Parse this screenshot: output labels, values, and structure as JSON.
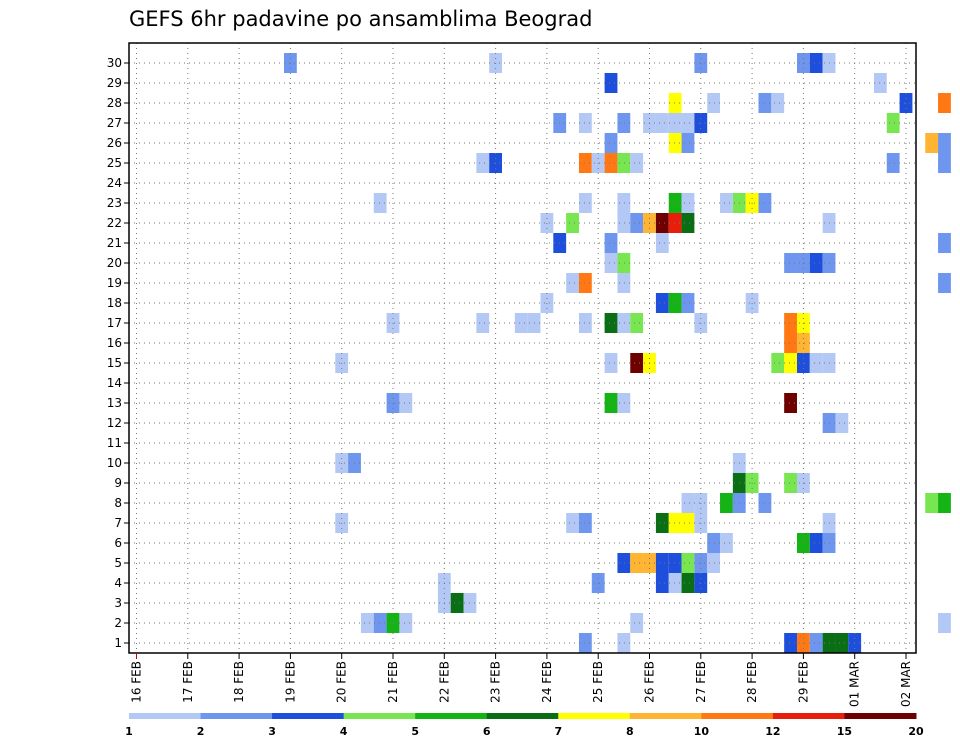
{
  "chart_data": {
    "type": "heatmap",
    "title": "GEFS 6hr padavine po ansamblima Beograd",
    "xlabel": "",
    "ylabel": "",
    "x_tick_labels": [
      "16 FEB",
      "17 FEB",
      "18 FEB",
      "19 FEB",
      "20 FEB",
      "21 FEB",
      "22 FEB",
      "23 FEB",
      "24 FEB",
      "25 FEB",
      "26 FEB",
      "27 FEB",
      "28 FEB",
      "29 FEB",
      "01 MAR",
      "02 MAR"
    ],
    "y_tick_labels": [
      "1",
      "2",
      "3",
      "4",
      "5",
      "6",
      "7",
      "8",
      "9",
      "10",
      "11",
      "12",
      "13",
      "14",
      "15",
      "16",
      "17",
      "18",
      "19",
      "20",
      "21",
      "22",
      "23",
      "24",
      "25",
      "26",
      "27",
      "28",
      "29",
      "30"
    ],
    "grid": true,
    "colorbar": {
      "labels": [
        "1",
        "2",
        "3",
        "4",
        "5",
        "6",
        "7",
        "8",
        "10",
        "12",
        "15",
        "20"
      ],
      "colors": [
        "#b4c8f5",
        "#6e96ee",
        "#1e4edc",
        "#78e650",
        "#14b414",
        "#0a6e14",
        "#ffff00",
        "#ffb432",
        "#ff7814",
        "#e61e0a",
        "#6e0000"
      ]
    },
    "cells": [
      {
        "time": "19 FEB 00Z",
        "member": 30,
        "cls": 2
      },
      {
        "time": "23 FEB 00Z",
        "member": 30,
        "cls": 1
      },
      {
        "time": "27 FEB 00Z",
        "member": 30,
        "cls": 2
      },
      {
        "time": "29 FEB 00Z",
        "member": 30,
        "cls": 2
      },
      {
        "time": "29 FEB 06Z",
        "member": 30,
        "cls": 3
      },
      {
        "time": "29 FEB 12Z",
        "member": 30,
        "cls": 1
      },
      {
        "time": "25 FEB 06Z",
        "member": 29,
        "cls": 3
      },
      {
        "time": "01 MAR 12Z",
        "member": 29,
        "cls": 1
      },
      {
        "time": "26 FEB 12Z",
        "member": 28,
        "cls": 7
      },
      {
        "time": "27 FEB 06Z",
        "member": 28,
        "cls": 1
      },
      {
        "time": "28 FEB 06Z",
        "member": 28,
        "cls": 2
      },
      {
        "time": "28 FEB 12Z",
        "member": 28,
        "cls": 1
      },
      {
        "time": "02 MAR 18Z",
        "member": 28,
        "cls": 9
      },
      {
        "time": "02 MAR 00Z",
        "member": 28,
        "cls": 3
      },
      {
        "time": "24 FEB 06Z",
        "member": 27,
        "cls": 2
      },
      {
        "time": "24 FEB 18Z",
        "member": 27,
        "cls": 1
      },
      {
        "time": "25 FEB 12Z",
        "member": 27,
        "cls": 2
      },
      {
        "time": "26 FEB 00Z",
        "member": 27,
        "cls": 1
      },
      {
        "time": "26 FEB 06Z",
        "member": 27,
        "cls": 1
      },
      {
        "time": "26 FEB 12Z",
        "member": 27,
        "cls": 1
      },
      {
        "time": "26 FEB 18Z",
        "member": 27,
        "cls": 1
      },
      {
        "time": "27 FEB 00Z",
        "member": 27,
        "cls": 3
      },
      {
        "time": "01 MAR 18Z",
        "member": 27,
        "cls": 4
      },
      {
        "time": "25 FEB 06Z",
        "member": 26,
        "cls": 2
      },
      {
        "time": "26 FEB 12Z",
        "member": 26,
        "cls": 7
      },
      {
        "time": "26 FEB 18Z",
        "member": 26,
        "cls": 2
      },
      {
        "time": "02 MAR 12Z",
        "member": 26,
        "cls": 8
      },
      {
        "time": "02 MAR 18Z",
        "member": 26,
        "cls": 2
      },
      {
        "time": "22 FEB 18Z",
        "member": 25,
        "cls": 1
      },
      {
        "time": "23 FEB 00Z",
        "member": 25,
        "cls": 3
      },
      {
        "time": "24 FEB 18Z",
        "member": 25,
        "cls": 9
      },
      {
        "time": "25 FEB 00Z",
        "member": 25,
        "cls": 1
      },
      {
        "time": "25 FEB 06Z",
        "member": 25,
        "cls": 9
      },
      {
        "time": "25 FEB 12Z",
        "member": 25,
        "cls": 4
      },
      {
        "time": "25 FEB 18Z",
        "member": 25,
        "cls": 1
      },
      {
        "time": "01 MAR 18Z",
        "member": 25,
        "cls": 2
      },
      {
        "time": "02 MAR 18Z",
        "member": 25,
        "cls": 2
      },
      {
        "time": "20 FEB 18Z",
        "member": 23,
        "cls": 1
      },
      {
        "time": "24 FEB 18Z",
        "member": 23,
        "cls": 1
      },
      {
        "time": "25 FEB 12Z",
        "member": 23,
        "cls": 1
      },
      {
        "time": "26 FEB 12Z",
        "member": 23,
        "cls": 5
      },
      {
        "time": "26 FEB 18Z",
        "member": 23,
        "cls": 1
      },
      {
        "time": "27 FEB 12Z",
        "member": 23,
        "cls": 1
      },
      {
        "time": "27 FEB 18Z",
        "member": 23,
        "cls": 4
      },
      {
        "time": "28 FEB 00Z",
        "member": 23,
        "cls": 7
      },
      {
        "time": "28 FEB 06Z",
        "member": 23,
        "cls": 2
      },
      {
        "time": "24 FEB 00Z",
        "member": 22,
        "cls": 1
      },
      {
        "time": "24 FEB 12Z",
        "member": 22,
        "cls": 4
      },
      {
        "time": "25 FEB 12Z",
        "member": 22,
        "cls": 1
      },
      {
        "time": "25 FEB 18Z",
        "member": 22,
        "cls": 2
      },
      {
        "time": "26 FEB 00Z",
        "member": 22,
        "cls": 8
      },
      {
        "time": "26 FEB 06Z",
        "member": 22,
        "cls": 11
      },
      {
        "time": "26 FEB 12Z",
        "member": 22,
        "cls": 10
      },
      {
        "time": "26 FEB 18Z",
        "member": 22,
        "cls": 6
      },
      {
        "time": "29 FEB 12Z",
        "member": 22,
        "cls": 1
      },
      {
        "time": "24 FEB 06Z",
        "member": 21,
        "cls": 3
      },
      {
        "time": "25 FEB 06Z",
        "member": 21,
        "cls": 2
      },
      {
        "time": "26 FEB 06Z",
        "member": 21,
        "cls": 1
      },
      {
        "time": "02 MAR 18Z",
        "member": 21,
        "cls": 2
      },
      {
        "time": "25 FEB 06Z",
        "member": 20,
        "cls": 1
      },
      {
        "time": "25 FEB 12Z",
        "member": 20,
        "cls": 4
      },
      {
        "time": "28 FEB 18Z",
        "member": 20,
        "cls": 2
      },
      {
        "time": "29 FEB 00Z",
        "member": 20,
        "cls": 2
      },
      {
        "time": "29 FEB 06Z",
        "member": 20,
        "cls": 3
      },
      {
        "time": "29 FEB 12Z",
        "member": 20,
        "cls": 2
      },
      {
        "time": "24 FEB 12Z",
        "member": 19,
        "cls": 1
      },
      {
        "time": "24 FEB 18Z",
        "member": 19,
        "cls": 9
      },
      {
        "time": "25 FEB 12Z",
        "member": 19,
        "cls": 1
      },
      {
        "time": "02 MAR 18Z",
        "member": 19,
        "cls": 2
      },
      {
        "time": "24 FEB 00Z",
        "member": 18,
        "cls": 1
      },
      {
        "time": "26 FEB 06Z",
        "member": 18,
        "cls": 3
      },
      {
        "time": "26 FEB 12Z",
        "member": 18,
        "cls": 5
      },
      {
        "time": "26 FEB 18Z",
        "member": 18,
        "cls": 2
      },
      {
        "time": "28 FEB 00Z",
        "member": 18,
        "cls": 1
      },
      {
        "time": "21 FEB 00Z",
        "member": 17,
        "cls": 1
      },
      {
        "time": "22 FEB 18Z",
        "member": 17,
        "cls": 1
      },
      {
        "time": "23 FEB 12Z",
        "member": 17,
        "cls": 1
      },
      {
        "time": "23 FEB 18Z",
        "member": 17,
        "cls": 1
      },
      {
        "time": "24 FEB 18Z",
        "member": 17,
        "cls": 1
      },
      {
        "time": "25 FEB 06Z",
        "member": 17,
        "cls": 6
      },
      {
        "time": "25 FEB 12Z",
        "member": 17,
        "cls": 1
      },
      {
        "time": "25 FEB 18Z",
        "member": 17,
        "cls": 4
      },
      {
        "time": "27 FEB 00Z",
        "member": 17,
        "cls": 1
      },
      {
        "time": "28 FEB 18Z",
        "member": 17,
        "cls": 9
      },
      {
        "time": "29 FEB 00Z",
        "member": 17,
        "cls": 7
      },
      {
        "time": "20 FEB 00Z",
        "member": 15,
        "cls": 1
      },
      {
        "time": "25 FEB 06Z",
        "member": 15,
        "cls": 1
      },
      {
        "time": "25 FEB 18Z",
        "member": 15,
        "cls": 11
      },
      {
        "time": "26 FEB 00Z",
        "member": 15,
        "cls": 7
      },
      {
        "time": "28 FEB 12Z",
        "member": 15,
        "cls": 4
      },
      {
        "time": "28 FEB 18Z",
        "member": 15,
        "cls": 7
      },
      {
        "time": "29 FEB 00Z",
        "member": 15,
        "cls": 3
      },
      {
        "time": "29 FEB 06Z",
        "member": 15,
        "cls": 1
      },
      {
        "time": "29 FEB 12Z",
        "member": 15,
        "cls": 1
      },
      {
        "time": "28 FEB 18Z",
        "member": 16,
        "cls": 9
      },
      {
        "time": "29 FEB 00Z",
        "member": 16,
        "cls": 8
      },
      {
        "time": "21 FEB 00Z",
        "member": 13,
        "cls": 2
      },
      {
        "time": "21 FEB 06Z",
        "member": 13,
        "cls": 1
      },
      {
        "time": "25 FEB 06Z",
        "member": 13,
        "cls": 5
      },
      {
        "time": "25 FEB 12Z",
        "member": 13,
        "cls": 1
      },
      {
        "time": "28 FEB 18Z",
        "member": 13,
        "cls": 11
      },
      {
        "time": "29 FEB 12Z",
        "member": 12,
        "cls": 2
      },
      {
        "time": "29 FEB 18Z",
        "member": 12,
        "cls": 1
      },
      {
        "time": "20 FEB 00Z",
        "member": 10,
        "cls": 1
      },
      {
        "time": "20 FEB 06Z",
        "member": 10,
        "cls": 2
      },
      {
        "time": "27 FEB 18Z",
        "member": 10,
        "cls": 1
      },
      {
        "time": "27 FEB 18Z",
        "member": 9,
        "cls": 6
      },
      {
        "time": "28 FEB 00Z",
        "member": 9,
        "cls": 4
      },
      {
        "time": "28 FEB 18Z",
        "member": 9,
        "cls": 4
      },
      {
        "time": "29 FEB 00Z",
        "member": 9,
        "cls": 1
      },
      {
        "time": "26 FEB 18Z",
        "member": 8,
        "cls": 1
      },
      {
        "time": "27 FEB 00Z",
        "member": 8,
        "cls": 1
      },
      {
        "time": "27 FEB 12Z",
        "member": 8,
        "cls": 5
      },
      {
        "time": "27 FEB 18Z",
        "member": 8,
        "cls": 2
      },
      {
        "time": "28 FEB 06Z",
        "member": 8,
        "cls": 2
      },
      {
        "time": "02 MAR 12Z",
        "member": 8,
        "cls": 4
      },
      {
        "time": "02 MAR 18Z",
        "member": 8,
        "cls": 5
      },
      {
        "time": "20 FEB 00Z",
        "member": 7,
        "cls": 1
      },
      {
        "time": "24 FEB 12Z",
        "member": 7,
        "cls": 1
      },
      {
        "time": "24 FEB 18Z",
        "member": 7,
        "cls": 2
      },
      {
        "time": "26 FEB 06Z",
        "member": 7,
        "cls": 6
      },
      {
        "time": "26 FEB 12Z",
        "member": 7,
        "cls": 7
      },
      {
        "time": "26 FEB 18Z",
        "member": 7,
        "cls": 7
      },
      {
        "time": "27 FEB 00Z",
        "member": 7,
        "cls": 1
      },
      {
        "time": "29 FEB 12Z",
        "member": 7,
        "cls": 1
      },
      {
        "time": "27 FEB 06Z",
        "member": 6,
        "cls": 2
      },
      {
        "time": "27 FEB 12Z",
        "member": 6,
        "cls": 1
      },
      {
        "time": "29 FEB 00Z",
        "member": 6,
        "cls": 5
      },
      {
        "time": "29 FEB 06Z",
        "member": 6,
        "cls": 3
      },
      {
        "time": "29 FEB 12Z",
        "member": 6,
        "cls": 2
      },
      {
        "time": "25 FEB 12Z",
        "member": 5,
        "cls": 3
      },
      {
        "time": "25 FEB 18Z",
        "member": 5,
        "cls": 8
      },
      {
        "time": "26 FEB 00Z",
        "member": 5,
        "cls": 8
      },
      {
        "time": "26 FEB 06Z",
        "member": 5,
        "cls": 3
      },
      {
        "time": "26 FEB 12Z",
        "member": 5,
        "cls": 3
      },
      {
        "time": "26 FEB 18Z",
        "member": 5,
        "cls": 4
      },
      {
        "time": "27 FEB 00Z",
        "member": 5,
        "cls": 2
      },
      {
        "time": "27 FEB 06Z",
        "member": 5,
        "cls": 1
      },
      {
        "time": "22 FEB 00Z",
        "member": 4,
        "cls": 1
      },
      {
        "time": "25 FEB 00Z",
        "member": 4,
        "cls": 2
      },
      {
        "time": "26 FEB 06Z",
        "member": 4,
        "cls": 3
      },
      {
        "time": "26 FEB 12Z",
        "member": 4,
        "cls": 1
      },
      {
        "time": "26 FEB 18Z",
        "member": 4,
        "cls": 6
      },
      {
        "time": "27 FEB 00Z",
        "member": 4,
        "cls": 3
      },
      {
        "time": "22 FEB 00Z",
        "member": 3,
        "cls": 1
      },
      {
        "time": "22 FEB 06Z",
        "member": 3,
        "cls": 6
      },
      {
        "time": "22 FEB 12Z",
        "member": 3,
        "cls": 1
      },
      {
        "time": "20 FEB 12Z",
        "member": 2,
        "cls": 1
      },
      {
        "time": "20 FEB 18Z",
        "member": 2,
        "cls": 2
      },
      {
        "time": "21 FEB 00Z",
        "member": 2,
        "cls": 5
      },
      {
        "time": "21 FEB 06Z",
        "member": 2,
        "cls": 1
      },
      {
        "time": "25 FEB 18Z",
        "member": 2,
        "cls": 1
      },
      {
        "time": "02 MAR 18Z",
        "member": 2,
        "cls": 1
      },
      {
        "time": "24 FEB 18Z",
        "member": 1,
        "cls": 2
      },
      {
        "time": "25 FEB 12Z",
        "member": 1,
        "cls": 1
      },
      {
        "time": "28 FEB 18Z",
        "member": 1,
        "cls": 3
      },
      {
        "time": "29 FEB 00Z",
        "member": 1,
        "cls": 9
      },
      {
        "time": "29 FEB 06Z",
        "member": 1,
        "cls": 2
      },
      {
        "time": "29 FEB 12Z",
        "member": 1,
        "cls": 6
      },
      {
        "time": "29 FEB 18Z",
        "member": 1,
        "cls": 6
      },
      {
        "time": "01 MAR 00Z",
        "member": 1,
        "cls": 3
      }
    ]
  }
}
